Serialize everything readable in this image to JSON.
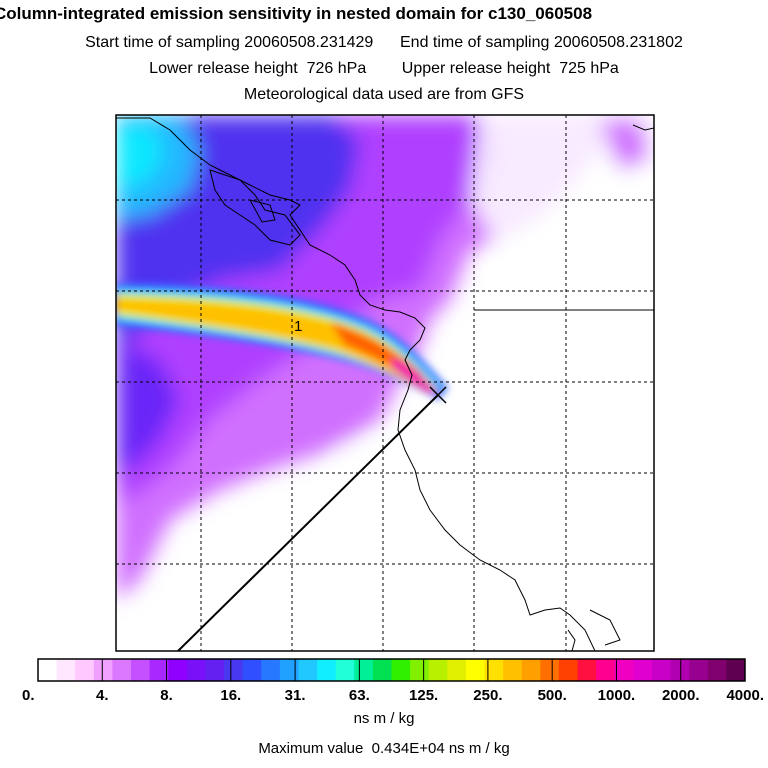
{
  "header": {
    "title": "Column-integrated emission sensitivity in nested domain for c130_060508",
    "line2": "Start time of sampling 20060508.231429      End time of sampling 20060508.231802",
    "line3": "Lower release height  726 hPa        Upper release height  725 hPa",
    "line4": "Meteorological data used are from GFS"
  },
  "chart_data": {
    "type": "heatmap",
    "title": "Column-integrated emission sensitivity in nested domain for c130_060508",
    "grid": true,
    "track_label": "1",
    "colorbar": {
      "ticks": [
        "0.",
        "4.",
        "8.",
        "16.",
        "31.",
        "63.",
        "125.",
        "250.",
        "500.",
        "1000.",
        "2000.",
        "4000."
      ],
      "colors": [
        "#ffffff",
        "#ffe8ff",
        "#ffc8ff",
        "#f0a0ff",
        "#dc78ff",
        "#c450ff",
        "#a828ff",
        "#9000ff",
        "#7a10f8",
        "#6420f0",
        "#4838f0",
        "#3050ff",
        "#2878ff",
        "#20a0ff",
        "#20c8ff",
        "#10eeff",
        "#20ffd8",
        "#00f098",
        "#00e050",
        "#30f000",
        "#80f000",
        "#b8f000",
        "#e0f000",
        "#ffff00",
        "#ffe000",
        "#ffc000",
        "#ffa000",
        "#ff7000",
        "#ff4000",
        "#ff1040",
        "#ff0090",
        "#f000c0",
        "#e000d0",
        "#c800c8",
        "#b000b0",
        "#980090",
        "#800070",
        "#600050"
      ],
      "units": "ns m / kg"
    },
    "max_value_text": "Maximum value  0.434E+04 ns m / kg",
    "colors": {
      "frame": "#000000",
      "grid": "#000000",
      "coast": "#000000"
    }
  }
}
